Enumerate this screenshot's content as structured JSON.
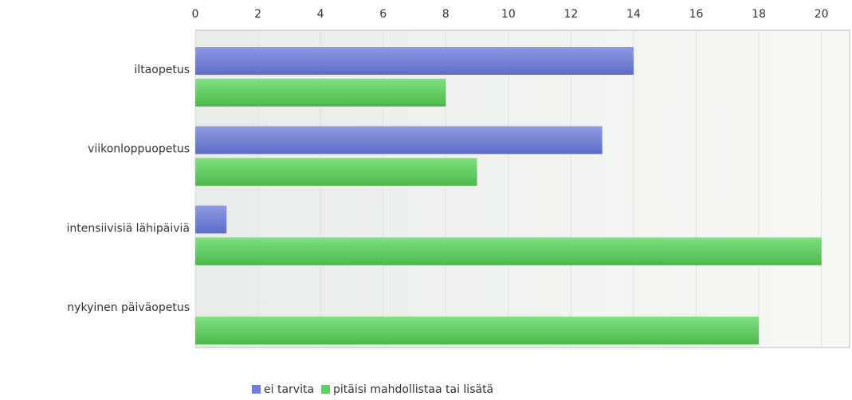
{
  "chart_data": {
    "type": "hbar",
    "categories": [
      "iltaopetus",
      "viikonloppuopetus",
      "intensiivisiä lähipäiviä",
      "nykyinen päiväopetus"
    ],
    "series": [
      {
        "name": "ei tarvita",
        "color": "#6f7fd6",
        "values": [
          14,
          13,
          1,
          0
        ]
      },
      {
        "name": "pitäisi mahdollistaa tai lisätä",
        "color": "#5fd05f",
        "values": [
          8,
          9,
          20,
          18
        ]
      }
    ],
    "xlim": [
      0,
      20.9
    ],
    "xticks": [
      0,
      2,
      4,
      6,
      8,
      10,
      12,
      14,
      16,
      18,
      20
    ],
    "grid": true,
    "legend": "bottom"
  }
}
